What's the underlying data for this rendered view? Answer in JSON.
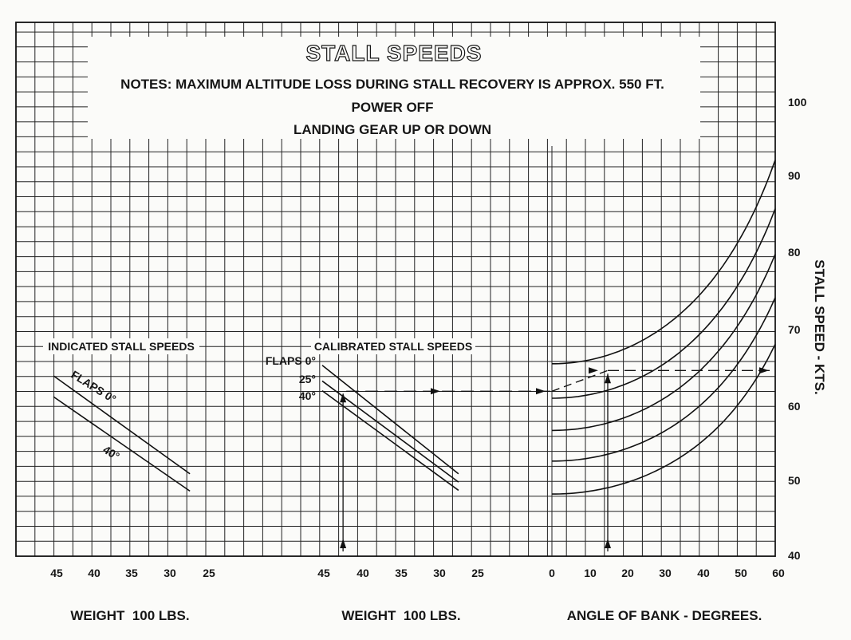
{
  "chart_data": {
    "type": "line",
    "title": "STALL SPEEDS",
    "notes": [
      "NOTES: MAXIMUM ALTITUDE LOSS DURING STALL RECOVERY IS APPROX. 550 FT.",
      "POWER OFF",
      "LANDING GEAR UP OR DOWN"
    ],
    "ylabel": "STALL SPEED - KTS.",
    "ylim": [
      40,
      100
    ],
    "yticks": [
      "40",
      "50",
      "60",
      "70",
      "80",
      "90",
      "100"
    ],
    "grid": true,
    "panels": [
      {
        "label": "INDICATED STALL SPEEDS",
        "xlabel": "WEIGHT  100 LBS.",
        "xticks": [
          "45",
          "40",
          "35",
          "30",
          "25"
        ],
        "xlim": [
          45,
          25
        ],
        "series": [
          {
            "name": "FLAPS 0°",
            "x": [
              45,
              27.5
            ],
            "y": [
              64.1,
              51.0
            ]
          },
          {
            "name": "40°",
            "x": [
              45,
              27.5
            ],
            "y": [
              61.3,
              48.7
            ]
          }
        ]
      },
      {
        "label": "CALIBRATED STALL SPEEDS",
        "xlabel": "WEIGHT  100 LBS.",
        "xticks": [
          "45",
          "40",
          "35",
          "30",
          "25"
        ],
        "xlim": [
          45,
          25
        ],
        "series": [
          {
            "name": "FLAPS 0°",
            "x": [
              45,
              27.5
            ],
            "y": [
              65.5,
              51.0
            ]
          },
          {
            "name": "25°",
            "x": [
              45,
              27.5
            ],
            "y": [
              63.4,
              49.9
            ]
          },
          {
            "name": "40°",
            "x": [
              45,
              27.5
            ],
            "y": [
              62.1,
              48.8
            ]
          }
        ],
        "example_weight": 42.5
      },
      {
        "label": "",
        "xlabel": "ANGLE OF BANK - DEGREES.",
        "xticks": [
          "0",
          "10",
          "20",
          "30",
          "40",
          "50",
          "60"
        ],
        "xlim": [
          0,
          60
        ],
        "series": [
          {
            "base_speed": 65.7
          },
          {
            "base_speed": 61.1
          },
          {
            "base_speed": 56.8
          },
          {
            "base_speed": 52.7
          },
          {
            "base_speed": 48.3
          }
        ],
        "example_bank_angle": 15,
        "example_result": 64.8
      }
    ]
  }
}
